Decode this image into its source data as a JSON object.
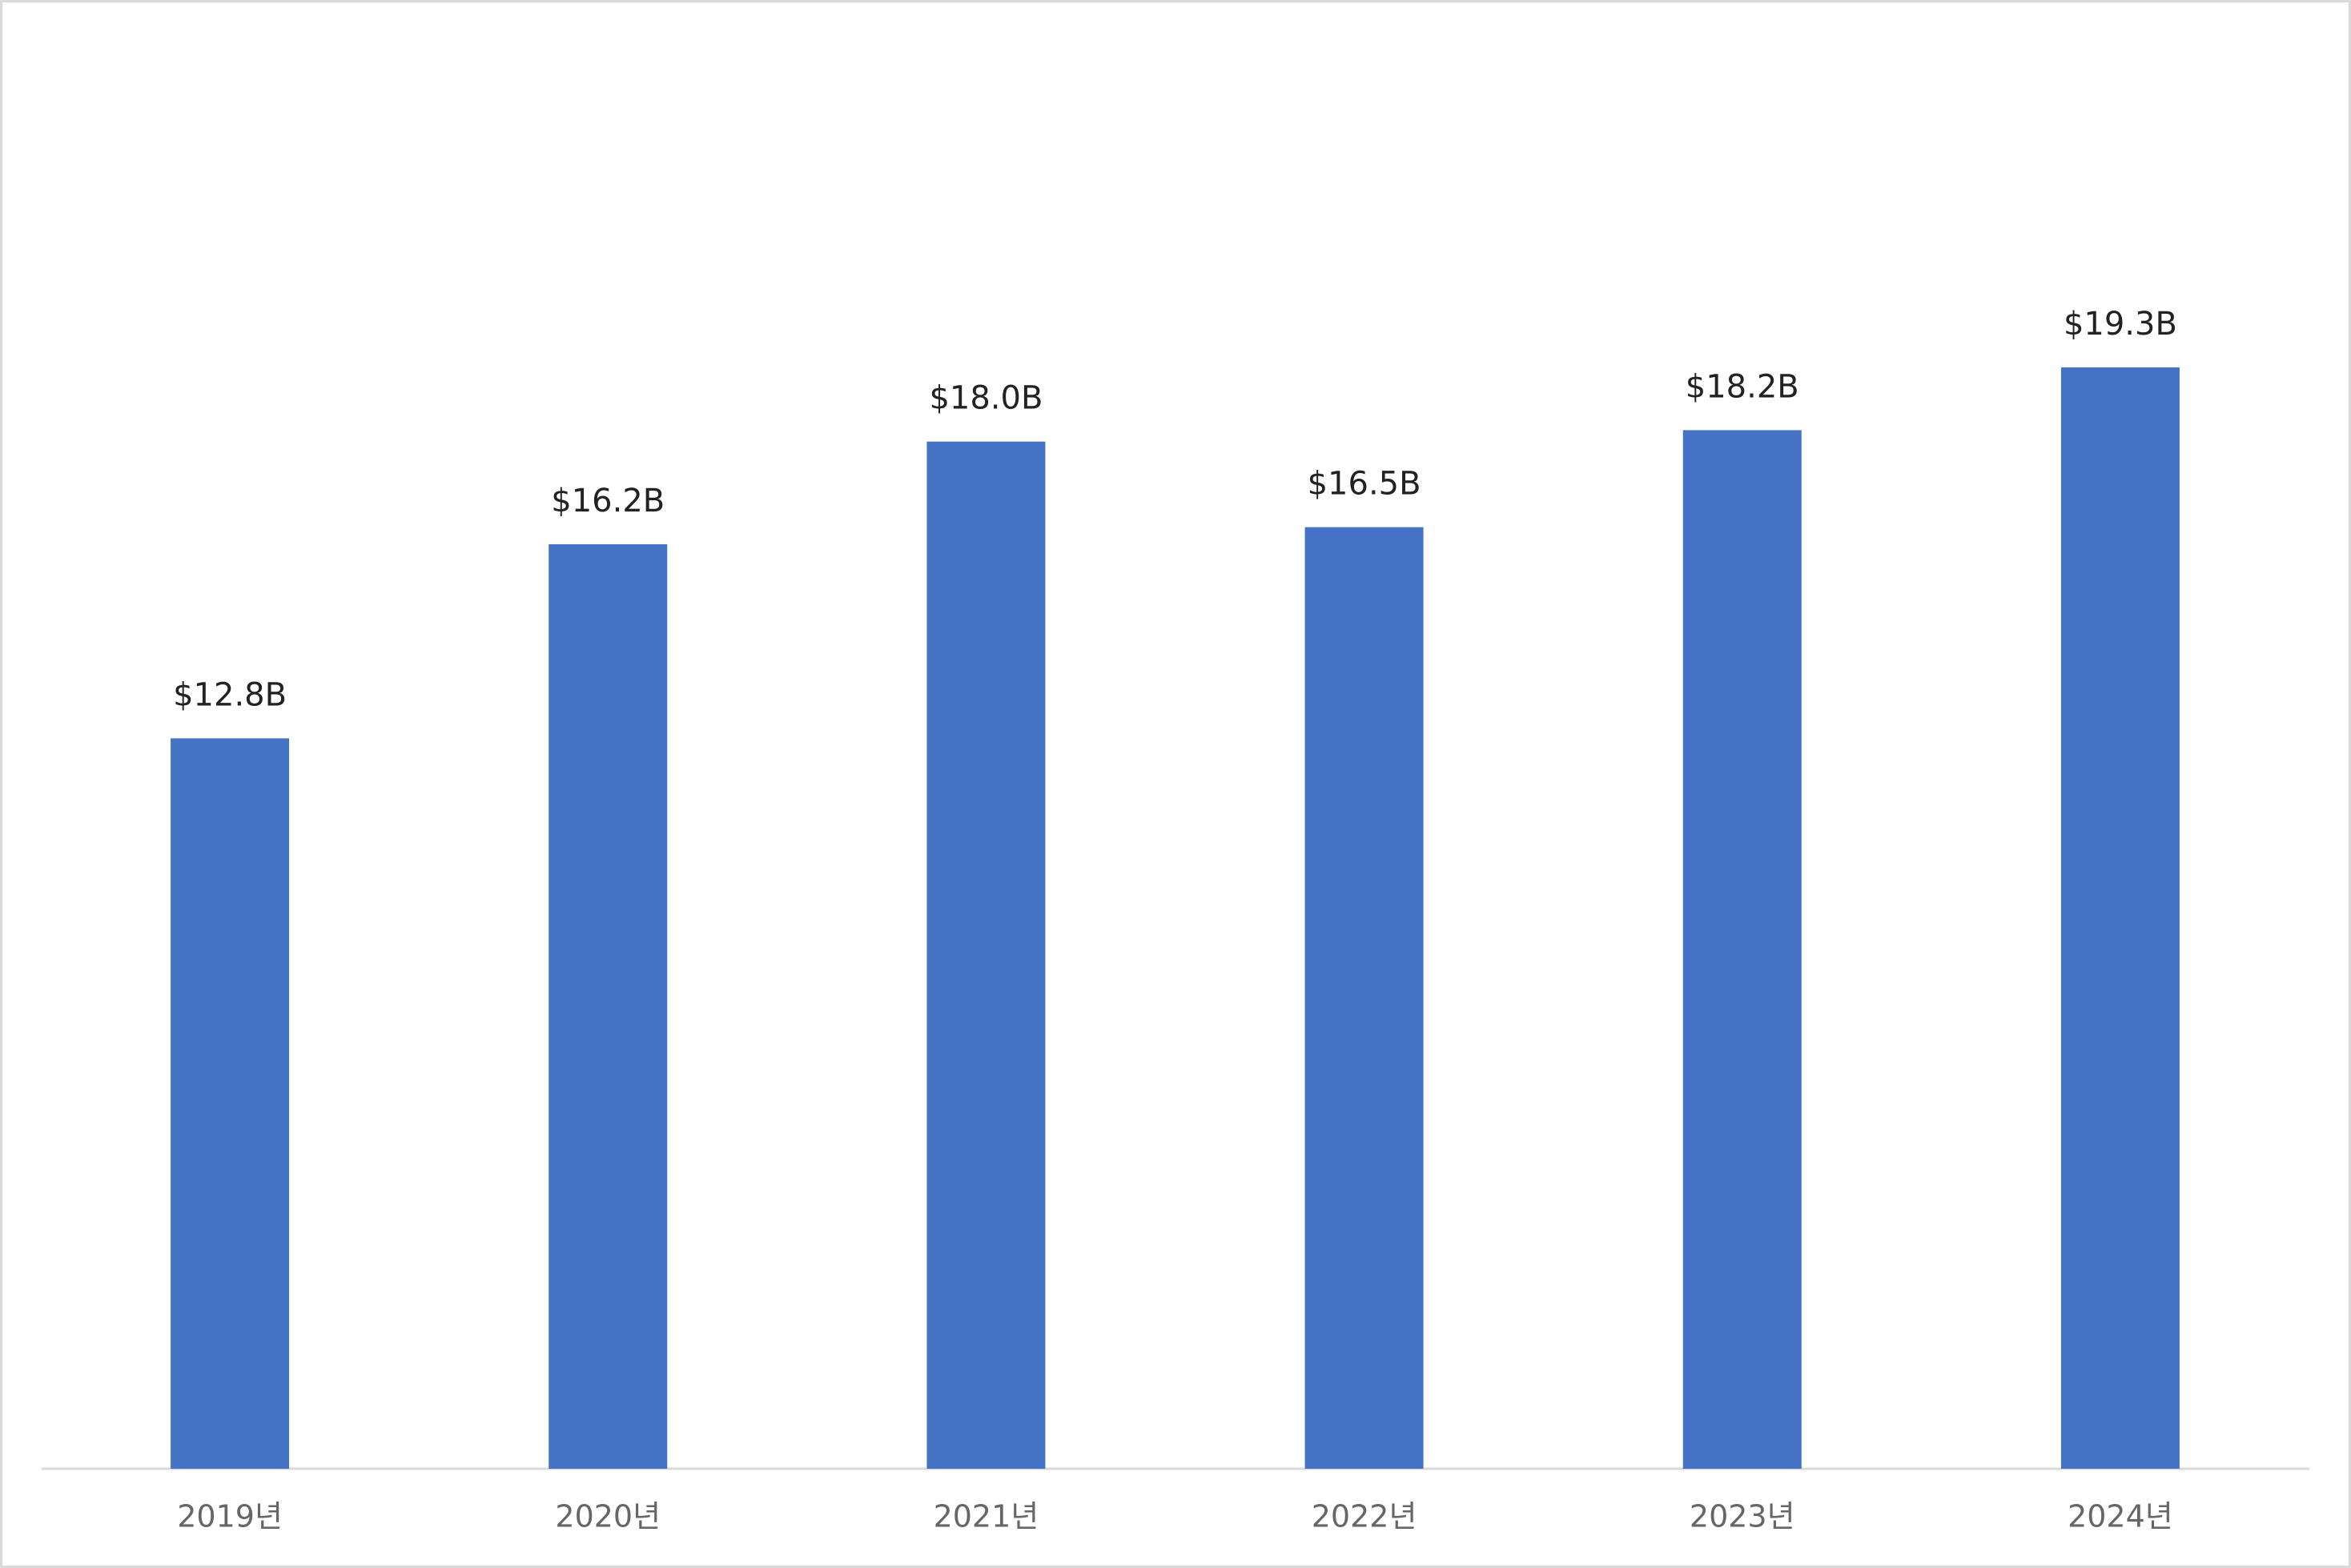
{
  "chart_data": {
    "type": "bar",
    "categories": [
      "2019년",
      "2020년",
      "2021년",
      "2022년",
      "2023년",
      "2024년"
    ],
    "values": [
      12.8,
      16.2,
      18.0,
      16.5,
      18.2,
      19.3
    ],
    "value_labels": [
      "$12.8B",
      "$16.2B",
      "$18.0B",
      "$16.5B",
      "$18.2B",
      "$19.3B"
    ],
    "color": "#4472c4"
  }
}
